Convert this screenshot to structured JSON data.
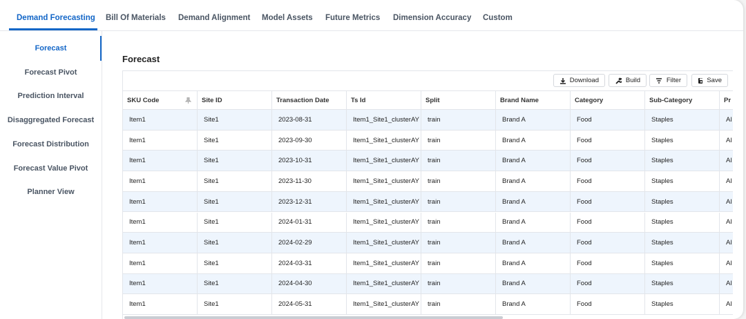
{
  "tabs": [
    "Demand Forecasting",
    "Bill Of Materials",
    "Demand Alignment",
    "Model Assets",
    "Future Metrics",
    "Dimension Accuracy",
    "Custom"
  ],
  "nav": [
    "Forecast",
    "Forecast Pivot",
    "Prediction Interval",
    "Disaggregated Forecast",
    "Forecast Distribution",
    "Forecast Value Pivot",
    "Planner View"
  ],
  "section": {
    "title": "Forecast"
  },
  "toolbar": [
    "Download",
    "Build",
    "Filter",
    "Save"
  ],
  "table": {
    "columns": [
      "SKU Code",
      "Site ID",
      "Transaction Date",
      "Ts Id",
      "Split",
      "Brand Name",
      "Category",
      "Sub-Category",
      "Pr"
    ],
    "rows": [
      [
        "Item1",
        "Site1",
        "2023-08-31",
        "Item1_Site1_clusterAY",
        "train",
        "Brand A",
        "Food",
        "Staples",
        "Al"
      ],
      [
        "Item1",
        "Site1",
        "2023-09-30",
        "Item1_Site1_clusterAY",
        "train",
        "Brand A",
        "Food",
        "Staples",
        "Al"
      ],
      [
        "Item1",
        "Site1",
        "2023-10-31",
        "Item1_Site1_clusterAY",
        "train",
        "Brand A",
        "Food",
        "Staples",
        "Al"
      ],
      [
        "Item1",
        "Site1",
        "2023-11-30",
        "Item1_Site1_clusterAY",
        "train",
        "Brand A",
        "Food",
        "Staples",
        "Al"
      ],
      [
        "Item1",
        "Site1",
        "2023-12-31",
        "Item1_Site1_clusterAY",
        "train",
        "Brand A",
        "Food",
        "Staples",
        "Al"
      ],
      [
        "Item1",
        "Site1",
        "2024-01-31",
        "Item1_Site1_clusterAY",
        "train",
        "Brand A",
        "Food",
        "Staples",
        "Al"
      ],
      [
        "Item1",
        "Site1",
        "2024-02-29",
        "Item1_Site1_clusterAY",
        "train",
        "Brand A",
        "Food",
        "Staples",
        "Al"
      ],
      [
        "Item1",
        "Site1",
        "2024-03-31",
        "Item1_Site1_clusterAY",
        "train",
        "Brand A",
        "Food",
        "Staples",
        "Al"
      ],
      [
        "Item1",
        "Site1",
        "2024-04-30",
        "Item1_Site1_clusterAY",
        "train",
        "Brand A",
        "Food",
        "Staples",
        "Al"
      ],
      [
        "Item1",
        "Site1",
        "2024-05-31",
        "Item1_Site1_clusterAY",
        "train",
        "Brand A",
        "Food",
        "Staples",
        "Al"
      ]
    ]
  }
}
